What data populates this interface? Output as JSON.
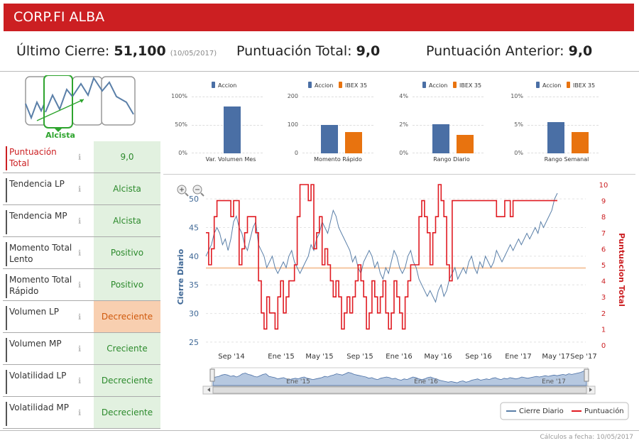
{
  "header": {
    "title": "CORP.FI ALBA"
  },
  "summary": {
    "last_close_label": "Último Cierre:",
    "last_close_value": "51,100",
    "last_close_date": "(10/05/2017)",
    "total_score_label": "Puntuación Total:",
    "total_score_value": "9,0",
    "prev_score_label": "Puntuación Anterior:",
    "prev_score_value": "9,0"
  },
  "trend": {
    "label": "Alcista"
  },
  "mini_charts": [
    {
      "legend": [
        "Accion"
      ],
      "yticks": [
        "100%",
        "50%",
        "0%"
      ],
      "xlabel": "Var. Volumen Mes",
      "ylim": [
        0,
        100
      ],
      "values": [
        82
      ]
    },
    {
      "legend": [
        "Accion",
        "IBEX 35"
      ],
      "yticks": [
        "200",
        "100",
        "0"
      ],
      "xlabel": "Momento Rápido",
      "ylim": [
        0,
        200
      ],
      "values": [
        100,
        76
      ]
    },
    {
      "legend": [
        "Accion",
        "IBEX 35"
      ],
      "yticks": [
        "4%",
        "2%",
        "0%"
      ],
      "xlabel": "Rango Diario",
      "ylim": [
        0,
        4
      ],
      "values": [
        2.05,
        1.3
      ]
    },
    {
      "legend": [
        "Accion",
        "IBEX 35"
      ],
      "yticks": [
        "10%",
        "5%",
        "0%"
      ],
      "xlabel": "Rango Semanal",
      "ylim": [
        0,
        10
      ],
      "values": [
        5.5,
        3.7
      ]
    }
  ],
  "colors": {
    "accion": "#4a6fa5",
    "ibex": "#e8730f",
    "brand": "#cc1f22",
    "close_line": "#5a7fa8",
    "score_line": "#e01b22"
  },
  "indicators": [
    {
      "label": "Puntuación Total",
      "value": "9,0",
      "status": "good"
    },
    {
      "label": "Tendencia LP",
      "value": "Alcista",
      "status": "good"
    },
    {
      "label": "Tendencia MP",
      "value": "Alcista",
      "status": "good"
    },
    {
      "label": "Momento Total Lento",
      "value": "Positivo",
      "status": "good"
    },
    {
      "label": "Momento Total Rápido",
      "value": "Positivo",
      "status": "good"
    },
    {
      "label": "Volumen LP",
      "value": "Decreciente",
      "status": "warn"
    },
    {
      "label": "Volumen MP",
      "value": "Creciente",
      "status": "good"
    },
    {
      "label": "Volatilidad LP",
      "value": "Decreciente",
      "status": "good"
    },
    {
      "label": "Volatilidad MP",
      "value": "Decreciente",
      "status": "good"
    }
  ],
  "info_icon": "info-icon",
  "chart_data": {
    "type": "line",
    "ylabel_left": "Cierre Diario",
    "ylabel_right": "Puntuacion Total",
    "ylim_left": [
      24,
      52
    ],
    "ylim_right": [
      0,
      10
    ],
    "yticks_left": [
      25,
      30,
      35,
      40,
      45,
      50
    ],
    "yticks_right": [
      0,
      1,
      2,
      3,
      4,
      5,
      6,
      7,
      8,
      9,
      10
    ],
    "x_ticks": [
      "Sep '14",
      "Ene '15",
      "May '15",
      "Sep '15",
      "Ene '16",
      "May '16",
      "Sep '16",
      "Ene '17",
      "May '17",
      "Sep '17"
    ],
    "navigator_ticks": [
      "Ene '15",
      "Ene '16",
      "Ene '17"
    ],
    "reference_line_right": 4.8,
    "legend": [
      "Cierre Diario",
      "Puntuación"
    ],
    "series": [
      {
        "name": "Cierre Diario",
        "axis": "left",
        "values": [
          40,
          41,
          42,
          44,
          45,
          44,
          42,
          43,
          41,
          43,
          46,
          47,
          45,
          44,
          42,
          41,
          43,
          45,
          46,
          42,
          41,
          40,
          38,
          39,
          40,
          38,
          37,
          38,
          39,
          38,
          40,
          41,
          39,
          38,
          37,
          38,
          39,
          40,
          42,
          41,
          43,
          44,
          46,
          45,
          44,
          46,
          48,
          47,
          45,
          44,
          43,
          42,
          41,
          39,
          40,
          38,
          37,
          39,
          40,
          41,
          40,
          38,
          39,
          37,
          36,
          38,
          37,
          39,
          41,
          40,
          38,
          37,
          38,
          40,
          41,
          39,
          38,
          36,
          35,
          34,
          33,
          34,
          33,
          32,
          34,
          35,
          33,
          34,
          36,
          37,
          38,
          36,
          37,
          38,
          37,
          39,
          40,
          38,
          37,
          39,
          38,
          40,
          39,
          38,
          39,
          41,
          40,
          39,
          40,
          41,
          42,
          41,
          42,
          43,
          42,
          43,
          44,
          43,
          44,
          45,
          44,
          46,
          45,
          46,
          47,
          48,
          50,
          51
        ]
      },
      {
        "name": "Puntuación",
        "axis": "right",
        "values": [
          7,
          5,
          6,
          8,
          9,
          9,
          9,
          9,
          9,
          8,
          9,
          9,
          5,
          6,
          7,
          8,
          8,
          8,
          7,
          4,
          2,
          1,
          3,
          2,
          2,
          1,
          3,
          4,
          2,
          3,
          4,
          4,
          5,
          8,
          10,
          10,
          10,
          9,
          10,
          6,
          7,
          8,
          5,
          6,
          5,
          4,
          3,
          4,
          3,
          1,
          2,
          3,
          2,
          3,
          4,
          5,
          4,
          3,
          1,
          2,
          4,
          3,
          2,
          3,
          4,
          2,
          1,
          2,
          4,
          3,
          2,
          1,
          3,
          4,
          5,
          5,
          5,
          8,
          9,
          8,
          7,
          5,
          7,
          8,
          10,
          9,
          8,
          5,
          4,
          9,
          9,
          9,
          9,
          9,
          9,
          9,
          9,
          9,
          9,
          9,
          9,
          9,
          9,
          9,
          9,
          8,
          8,
          8,
          9,
          9,
          8,
          9,
          9,
          9,
          9,
          9,
          9,
          9,
          9,
          9,
          9,
          9,
          9,
          9,
          9,
          9,
          9,
          9
        ]
      }
    ]
  },
  "footer": {
    "text": "Cálculos a fecha: 10/05/2017"
  }
}
